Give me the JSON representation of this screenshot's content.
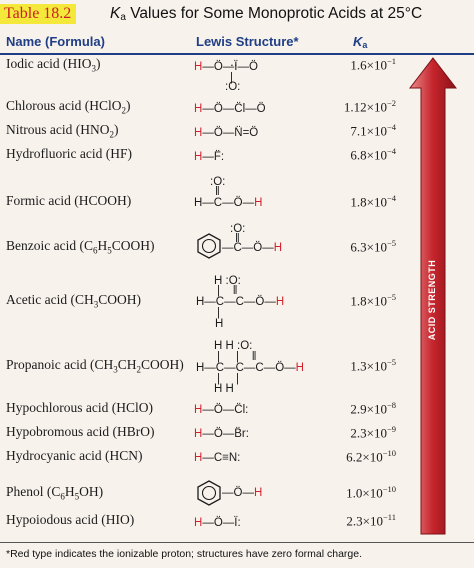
{
  "title": {
    "table_tag": "Table 18.2",
    "k_symbol": "K",
    "k_sub": "a",
    "text": " Values for Some Monoprotic Acids at 25°C"
  },
  "headers": {
    "name": "Name (Formula)",
    "lewis": "Lewis Structure*",
    "ka_symbol": "K",
    "ka_sub": "a"
  },
  "rows": [
    {
      "name": "Iodic acid (HIO",
      "name_sub": "3",
      "name_end": ")",
      "ka": "1.6×10",
      "ka_exp": "−1"
    },
    {
      "name": "Chlorous acid (HClO",
      "name_sub": "2",
      "name_end": ")",
      "ka": "1.12×10",
      "ka_exp": "−2"
    },
    {
      "name": "Nitrous acid (HNO",
      "name_sub": "2",
      "name_end": ")",
      "ka": "7.1×10",
      "ka_exp": "−4"
    },
    {
      "name": "Hydrofluoric acid (HF)",
      "name_sub": "",
      "name_end": "",
      "ka": "6.8×10",
      "ka_exp": "−4"
    },
    {
      "name": "Formic acid (HCOOH)",
      "name_sub": "",
      "name_end": "",
      "ka": "1.8×10",
      "ka_exp": "−4"
    },
    {
      "name": "Benzoic acid (C",
      "name_sub": "6",
      "name_end": "H",
      "name_sub2": "5",
      "name_end2": "COOH)",
      "ka": "6.3×10",
      "ka_exp": "−5"
    },
    {
      "name": "Acetic acid (CH",
      "name_sub": "3",
      "name_end": "COOH)",
      "ka": "1.8×10",
      "ka_exp": "−5"
    },
    {
      "name": "Propanoic acid (CH",
      "name_sub": "3",
      "name_end": "CH",
      "name_sub2": "2",
      "name_end2": "COOH)",
      "ka": "1.3×10",
      "ka_exp": "−5"
    },
    {
      "name": "Hypochlorous acid (HClO)",
      "name_sub": "",
      "name_end": "",
      "ka": "2.9×10",
      "ka_exp": "−8"
    },
    {
      "name": "Hypobromous acid (HBrO)",
      "name_sub": "",
      "name_end": "",
      "ka": "2.3×10",
      "ka_exp": "−9"
    },
    {
      "name": "Hydrocyanic acid (HCN)",
      "name_sub": "",
      "name_end": "",
      "ka": "6.2×10",
      "ka_exp": "−10"
    },
    {
      "name": "Phenol (C",
      "name_sub": "6",
      "name_end": "H",
      "name_sub2": "5",
      "name_end2": "OH)",
      "ka": "1.0×10",
      "ka_exp": "−10"
    },
    {
      "name": "Hypoiodous acid (HIO)",
      "name_sub": "",
      "name_end": "",
      "ka": "2.3×10",
      "ka_exp": "−11"
    }
  ],
  "lewis": {
    "iodic": {
      "h": "H",
      "rest": "—Ö—Ï—Ö",
      "top": "‥ :O:",
      "bottom": ":O:"
    },
    "chlorous": {
      "h": "H",
      "rest": "—Ö—C̈l—Ö"
    },
    "nitrous": {
      "h": "H",
      "rest": "—Ö—N̈=Ö"
    },
    "hf": {
      "h": "H",
      "rest": "—F̈:"
    },
    "formic": {
      "top": ":O:",
      "left": "H—C—",
      "o": "Ö",
      "dash": "—",
      "h": "H"
    },
    "benzoic": {
      "top": ":O:",
      "mid": "—C—Ö—",
      "h": "H"
    },
    "acetic": {
      "top": "H  :O:",
      "mid": "H—C—C—Ö—",
      "h": "H",
      "bottom": "H"
    },
    "propanoic": {
      "top": "H   H  :O:",
      "mid": "H—C—C—C—Ö—",
      "h": "H",
      "bottom": "H   H"
    },
    "hypochlorous": {
      "h": "H",
      "rest": "—Ö—C̈l:"
    },
    "hypobromous": {
      "h": "H",
      "rest": "—Ö—B̈r:"
    },
    "hydrocyanic": {
      "h": "H",
      "rest": "—C≡N:"
    },
    "phenol": {
      "mid": "—Ö—",
      "h": "H"
    },
    "hypoiodous": {
      "h": "H",
      "rest": "—Ö—Ï:"
    }
  },
  "arrow_label": "ACID STRENGTH",
  "footnote": "*Red type indicates the ionizable proton; structures have zero formal charge.",
  "colors": {
    "accent_red": "#d2212b",
    "header_blue": "#1f3e86",
    "tag_yellow": "#f4e93a"
  }
}
